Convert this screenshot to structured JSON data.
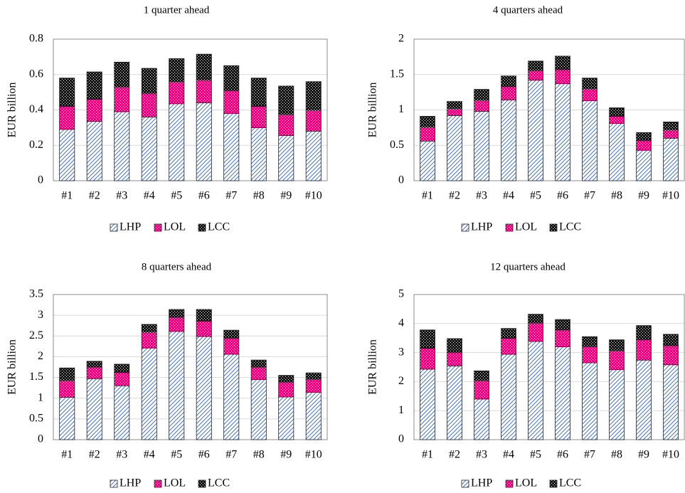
{
  "chart_data": [
    {
      "type": "stacked-bar",
      "title": "1 quarter ahead",
      "y_label": "EUR billion",
      "categories": [
        "#1",
        "#2",
        "#3",
        "#4",
        "#5",
        "#6",
        "#7",
        "#8",
        "#9",
        "#10"
      ],
      "series": [
        {
          "name": "LHP",
          "color": "#4472c4",
          "values": [
            0.29,
            0.335,
            0.39,
            0.36,
            0.435,
            0.44,
            0.38,
            0.3,
            0.255,
            0.28
          ]
        },
        {
          "name": "LOL",
          "color": "#e6007e",
          "values": [
            0.13,
            0.125,
            0.14,
            0.135,
            0.125,
            0.13,
            0.13,
            0.12,
            0.12,
            0.12
          ]
        },
        {
          "name": "LCC",
          "color": "#111111",
          "values": [
            0.16,
            0.155,
            0.14,
            0.14,
            0.13,
            0.145,
            0.14,
            0.16,
            0.16,
            0.16
          ]
        }
      ],
      "ylim": [
        0,
        0.8
      ],
      "yticks": [
        0,
        0.2,
        0.4,
        0.6,
        0.8
      ],
      "grid": true
    },
    {
      "type": "stacked-bar",
      "title": "4 quarters ahead",
      "y_label": "EUR billion",
      "categories": [
        "#1",
        "#2",
        "#3",
        "#4",
        "#5",
        "#6",
        "#7",
        "#8",
        "#9",
        "#10"
      ],
      "series": [
        {
          "name": "LHP",
          "color": "#4472c4",
          "values": [
            0.56,
            0.92,
            0.98,
            1.14,
            1.42,
            1.37,
            1.13,
            0.81,
            0.43,
            0.6
          ]
        },
        {
          "name": "LOL",
          "color": "#e6007e",
          "values": [
            0.2,
            0.1,
            0.16,
            0.19,
            0.14,
            0.2,
            0.17,
            0.1,
            0.14,
            0.12
          ]
        },
        {
          "name": "LCC",
          "color": "#111111",
          "values": [
            0.15,
            0.1,
            0.15,
            0.15,
            0.13,
            0.19,
            0.15,
            0.12,
            0.11,
            0.11
          ]
        }
      ],
      "ylim": [
        0,
        2
      ],
      "yticks": [
        0,
        0.5,
        1,
        1.5,
        2
      ],
      "grid": true
    },
    {
      "type": "stacked-bar",
      "title": "8 quarters ahead",
      "y_label": "EUR billion",
      "categories": [
        "#1",
        "#2",
        "#3",
        "#4",
        "#5",
        "#6",
        "#7",
        "#8",
        "#9",
        "#10"
      ],
      "series": [
        {
          "name": "LHP",
          "color": "#4472c4",
          "values": [
            1.02,
            1.47,
            1.3,
            2.21,
            2.61,
            2.49,
            2.06,
            1.45,
            1.03,
            1.14
          ]
        },
        {
          "name": "LOL",
          "color": "#e6007e",
          "values": [
            0.41,
            0.28,
            0.32,
            0.39,
            0.34,
            0.37,
            0.39,
            0.3,
            0.36,
            0.32
          ]
        },
        {
          "name": "LCC",
          "color": "#111111",
          "values": [
            0.3,
            0.14,
            0.2,
            0.18,
            0.19,
            0.28,
            0.19,
            0.17,
            0.16,
            0.15
          ]
        }
      ],
      "ylim": [
        0,
        3.5
      ],
      "yticks": [
        0,
        0.5,
        1,
        1.5,
        2,
        2.5,
        3,
        3.5
      ],
      "grid": true
    },
    {
      "type": "stacked-bar",
      "title": "12 quarters ahead",
      "y_label": "EUR billion",
      "categories": [
        "#1",
        "#2",
        "#3",
        "#4",
        "#5",
        "#6",
        "#7",
        "#8",
        "#9",
        "#10"
      ],
      "series": [
        {
          "name": "LHP",
          "color": "#4472c4",
          "values": [
            2.43,
            2.54,
            1.4,
            2.94,
            3.38,
            3.2,
            2.65,
            2.41,
            2.74,
            2.58
          ]
        },
        {
          "name": "LOL",
          "color": "#e6007e",
          "values": [
            0.72,
            0.47,
            0.64,
            0.55,
            0.64,
            0.58,
            0.56,
            0.66,
            0.71,
            0.66
          ]
        },
        {
          "name": "LCC",
          "color": "#111111",
          "values": [
            0.63,
            0.47,
            0.33,
            0.34,
            0.3,
            0.36,
            0.34,
            0.37,
            0.48,
            0.39
          ]
        }
      ],
      "ylim": [
        0,
        5
      ],
      "yticks": [
        0,
        1,
        2,
        3,
        4,
        5
      ],
      "grid": true
    }
  ]
}
